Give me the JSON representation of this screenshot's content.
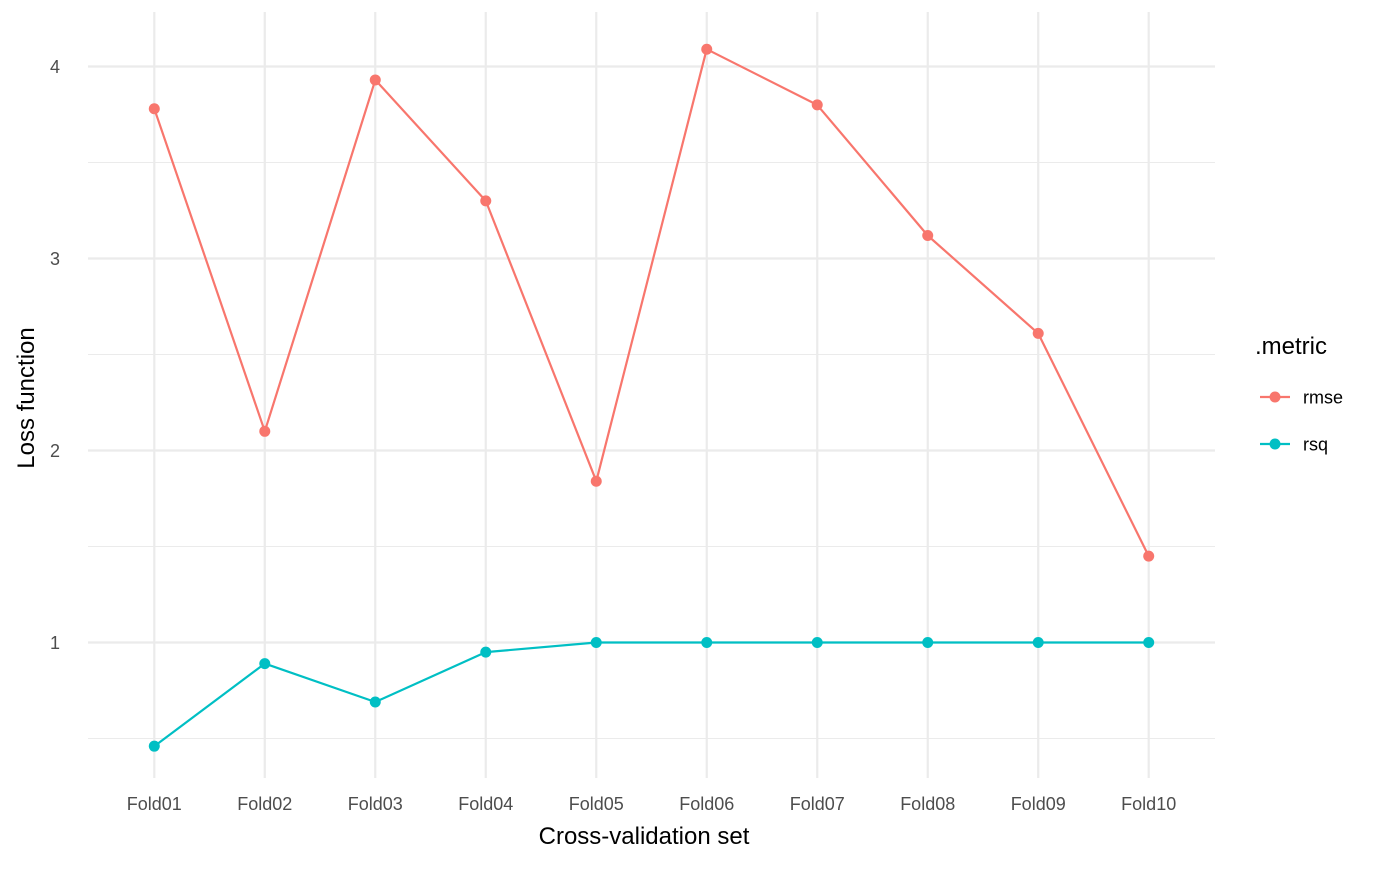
{
  "chart_data": {
    "type": "line",
    "xlabel": "Cross-validation set",
    "ylabel": "Loss function",
    "categories": [
      "Fold01",
      "Fold02",
      "Fold03",
      "Fold04",
      "Fold05",
      "Fold06",
      "Fold07",
      "Fold08",
      "Fold09",
      "Fold10"
    ],
    "ylim": [
      0.4,
      4.2
    ],
    "y_ticks": [
      1,
      2,
      3,
      4
    ],
    "y_minor_ticks": [
      0.5,
      1.5,
      2.5,
      3.5
    ],
    "grid": true,
    "legend": {
      "title": ".metric",
      "placement": "right"
    },
    "series": [
      {
        "name": "rmse",
        "color": "#F8766D",
        "values": [
          3.78,
          2.1,
          3.93,
          3.3,
          1.84,
          4.09,
          3.8,
          3.12,
          2.61,
          1.45
        ]
      },
      {
        "name": "rsq",
        "color": "#00BFC4",
        "values": [
          0.46,
          0.89,
          0.69,
          0.95,
          1.0,
          1.0,
          1.0,
          1.0,
          1.0,
          1.0
        ]
      }
    ]
  }
}
